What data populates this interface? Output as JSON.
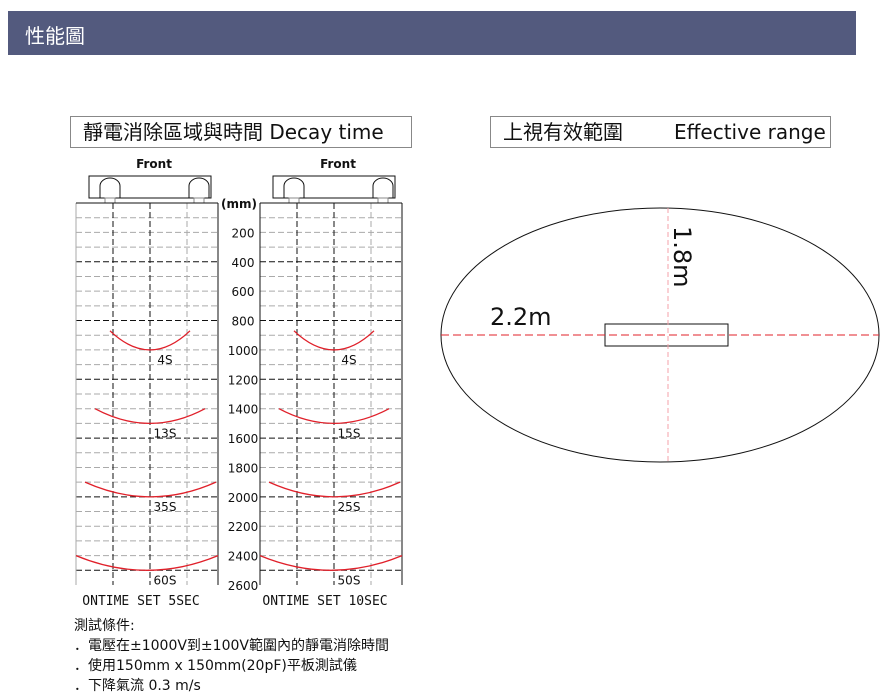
{
  "header": {
    "title": "性能圖"
  },
  "decay": {
    "title": "靜電消除區域與時間  Decay time",
    "unit": "(mm)",
    "y_ticks": [
      200,
      400,
      600,
      800,
      1000,
      1200,
      1400,
      1600,
      1800,
      2000,
      2200,
      2400,
      2600
    ],
    "y_range": [
      0,
      2600
    ],
    "panels": [
      {
        "front_label": "Front",
        "caption": "ONTIME SET 5SEC",
        "curves": [
          {
            "label": "4S",
            "end_mm": 870,
            "bottom_mm": 1000
          },
          {
            "label": "13S",
            "end_mm": 1400,
            "bottom_mm": 1500
          },
          {
            "label": "35S",
            "end_mm": 1900,
            "bottom_mm": 2000
          },
          {
            "label": "60S",
            "end_mm": 2400,
            "bottom_mm": 2500
          }
        ]
      },
      {
        "front_label": "Front",
        "caption": "ONTIME SET 10SEC",
        "curves": [
          {
            "label": "4S",
            "end_mm": 870,
            "bottom_mm": 1000
          },
          {
            "label": "15S",
            "end_mm": 1400,
            "bottom_mm": 1500
          },
          {
            "label": "25S",
            "end_mm": 1900,
            "bottom_mm": 2000
          },
          {
            "label": "50S",
            "end_mm": 2400,
            "bottom_mm": 2500
          }
        ]
      }
    ],
    "curve_color": "#e0202a"
  },
  "range": {
    "title_zh": "上視有效範圍",
    "title_en": "Effective range",
    "width_label": "2.2m",
    "depth_label": "1.8m",
    "axis_color": "#e0202a"
  },
  "notes": {
    "heading": "測試條件:",
    "items": [
      "．電壓在±1000V到±100V範圍內的靜電消除時間",
      "．使用150mm x 150mm(20pF)平板測試儀",
      "．下降氣流 0.3 m/s"
    ]
  },
  "colors": {
    "header_bg": "#535a7e"
  }
}
